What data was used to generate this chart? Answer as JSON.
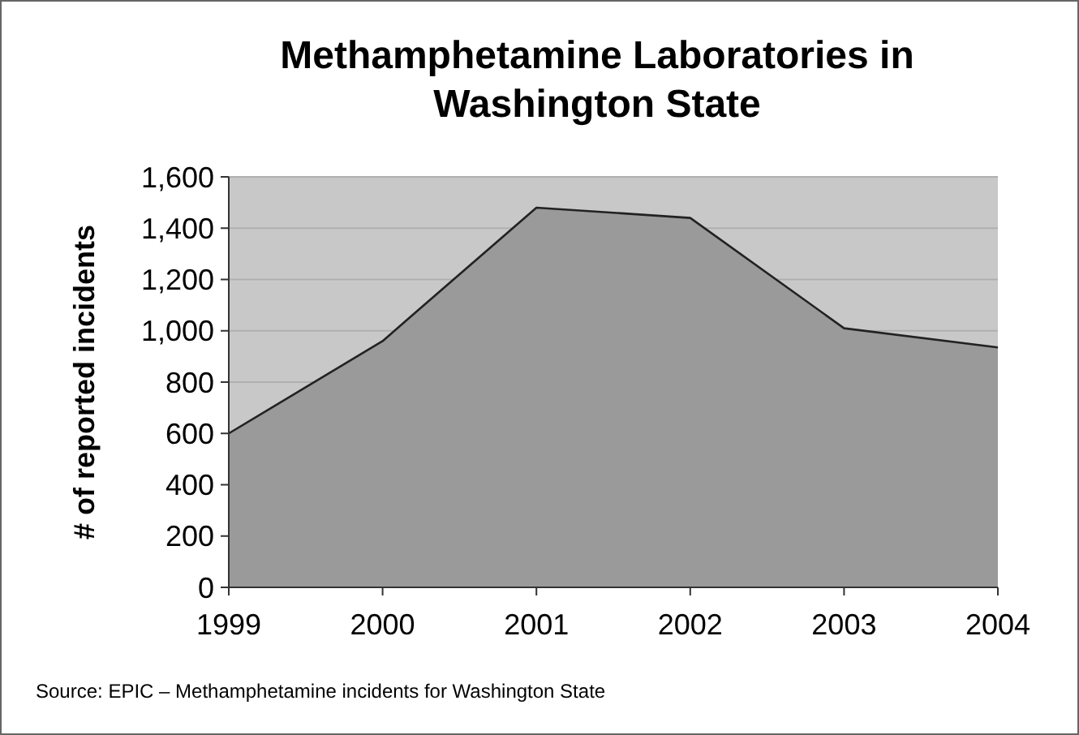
{
  "chart_data": {
    "type": "area",
    "title": "Methamphetamine Laboratories in Washington State",
    "ylabel": "# of reported incidents",
    "categories": [
      "1999",
      "2000",
      "2001",
      "2002",
      "2003",
      "2004"
    ],
    "series": [
      {
        "color": "#9a9a9a",
        "values": [
          600,
          960,
          1480,
          1440,
          1010,
          935
        ]
      }
    ],
    "ylim": [
      0,
      1600
    ],
    "yticks": [
      0,
      {
        "value": 200,
        "label": "200"
      },
      {
        "value": 400,
        "label": "400"
      },
      {
        "value": 600,
        "label": "600"
      },
      {
        "value": 800,
        "label": "800"
      },
      {
        "value": 1000,
        "label": "1,000"
      },
      {
        "value": 1200,
        "label": "1,200"
      },
      {
        "value": 1400,
        "label": "1,400"
      },
      {
        "value": 1600,
        "label": "1,600"
      }
    ],
    "grid": "y",
    "annotations": [
      "Source: EPIC – Methamphetamine incidents for Washington State"
    ]
  }
}
